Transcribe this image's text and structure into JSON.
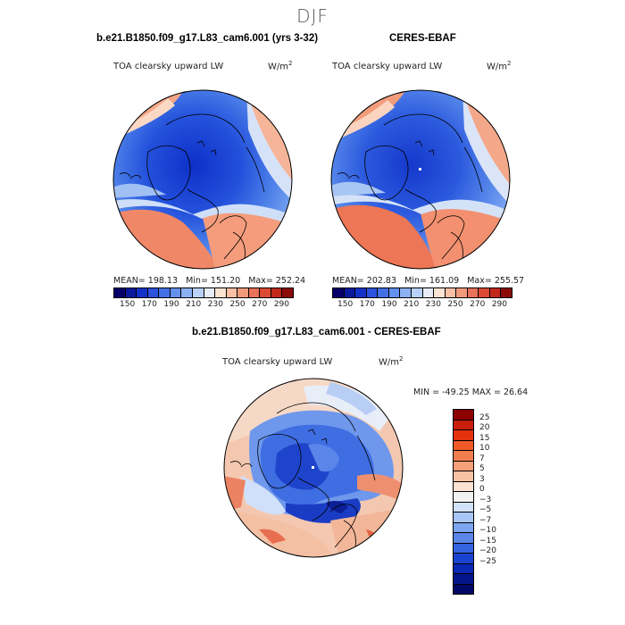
{
  "page_title": "DJF",
  "panel_left": {
    "title": "b.e21.B1850.f09_g17.L83_cam6.001 (yrs 3-32)",
    "variable": "TOA clearsky upward LW",
    "units_base": "W/m",
    "units_exp": "2",
    "mean": "MEAN= 198.13",
    "min": "Min= 151.20",
    "max": "Max= 252.24"
  },
  "panel_right": {
    "title": "CERES-EBAF",
    "variable": "TOA clearsky upward LW",
    "units_base": "W/m",
    "units_exp": "2",
    "mean": "MEAN= 202.83",
    "min": "Min= 161.09",
    "max": "Max= 255.57"
  },
  "panel_diff": {
    "title": "b.e21.B1850.f09_g17.L83_cam6.001 - CERES-EBAF",
    "variable": "TOA clearsky upward LW",
    "units_base": "W/m",
    "units_exp": "2",
    "minmax": "MIN = -49.25 MAX =  26.64"
  },
  "colorbar_abs": {
    "colors": [
      "#08006a",
      "#0a1a9c",
      "#1432c8",
      "#2a52dc",
      "#4470e6",
      "#6490ee",
      "#8cb0f4",
      "#b8d2fa",
      "#e8eef8",
      "#fce4d2",
      "#f8c0a4",
      "#f09a7c",
      "#e8725a",
      "#dc4a34",
      "#c2281a",
      "#8c0a08"
    ],
    "ticks": [
      "150",
      "170",
      "190",
      "210",
      "230",
      "250",
      "270",
      "290"
    ]
  },
  "colorbar_diff": {
    "colors": [
      "#8c0000",
      "#c81e0a",
      "#e4320e",
      "#ef5a28",
      "#f27e50",
      "#f5a07a",
      "#f8c2a4",
      "#fbe2d2",
      "#f2f2f2",
      "#d2e2fa",
      "#a8c6f6",
      "#7ea6f0",
      "#5a86ea",
      "#3664e0",
      "#1a44d0",
      "#0a28b4",
      "#04148c",
      "#020866"
    ],
    "ticks": [
      "25",
      "20",
      "15",
      "10",
      "7",
      "5",
      "3",
      "0",
      "−3",
      "−5",
      "−7",
      "−10",
      "−15",
      "−20",
      "−25"
    ]
  }
}
